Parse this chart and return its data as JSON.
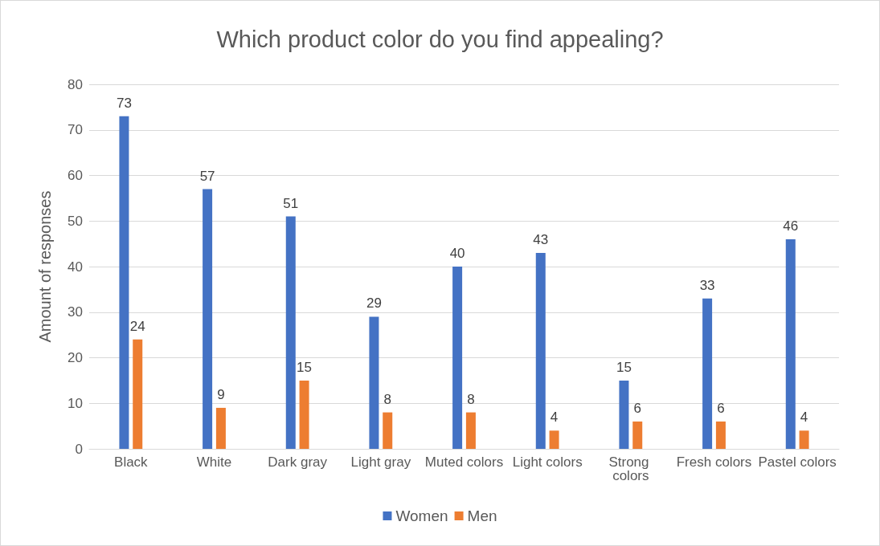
{
  "chart_data": {
    "type": "bar",
    "title": "Which product color do you find appealing?",
    "ylabel": "Amount of responses",
    "categories": [
      "Black",
      "White",
      "Dark gray",
      "Light gray",
      "Muted colors",
      "Light colors",
      "Strong colors",
      "Fresh colors",
      "Pastel colors"
    ],
    "series": [
      {
        "name": "Women",
        "color": "#4472c4",
        "values": [
          73,
          57,
          51,
          29,
          40,
          43,
          15,
          33,
          46
        ]
      },
      {
        "name": "Men",
        "color": "#ed7d31",
        "values": [
          24,
          9,
          15,
          8,
          8,
          4,
          6,
          6,
          4
        ]
      }
    ],
    "ylim": [
      0,
      80
    ],
    "yticks": [
      0,
      10,
      20,
      30,
      40,
      50,
      60,
      70,
      80
    ],
    "grid": "y",
    "legend": "bottom",
    "data_labels": true
  }
}
